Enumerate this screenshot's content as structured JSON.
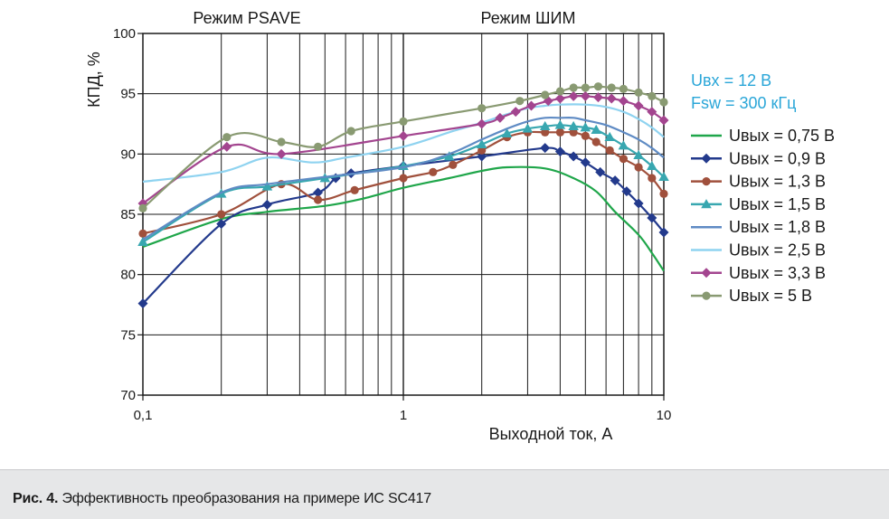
{
  "caption": {
    "label": "Рис. 4.",
    "text": " Эффективность преобразования на примере ИС SC417"
  },
  "chart_data": {
    "type": "line",
    "xscale": "log",
    "xlim": [
      0.1,
      10
    ],
    "ylim": [
      70,
      100
    ],
    "xlabel": "Выходной ток, А",
    "ylabel": "КПД, %",
    "xticks": [
      0.1,
      1,
      10
    ],
    "xtick_labels": [
      "0,1",
      "1",
      "10"
    ],
    "yticks": [
      70,
      75,
      80,
      85,
      90,
      95,
      100
    ],
    "grid": true,
    "legend_position": "right",
    "mode_labels": [
      "Режим PSAVE",
      "Режим ШИМ"
    ],
    "conditions": [
      "Uвх = 12 В",
      "Fsw = 300 кГц"
    ],
    "conditions_color": "#2aa6d8",
    "series": [
      {
        "name": "Uвых = 0,75 В",
        "color": "#1fa64a",
        "marker": "none",
        "points": [
          [
            0.1,
            82.3
          ],
          [
            0.2,
            84.6
          ],
          [
            0.3,
            85.2
          ],
          [
            0.5,
            85.7
          ],
          [
            0.7,
            86.3
          ],
          [
            1.0,
            87.2
          ],
          [
            1.5,
            88.0
          ],
          [
            2.0,
            88.6
          ],
          [
            2.5,
            88.9
          ],
          [
            3.5,
            88.8
          ],
          [
            4.5,
            88.0
          ],
          [
            5.5,
            86.9
          ],
          [
            6.5,
            85.2
          ],
          [
            8.0,
            83.3
          ],
          [
            9.0,
            81.8
          ],
          [
            10.0,
            80.3
          ]
        ]
      },
      {
        "name": "Uвых = 0,9 В",
        "color": "#233a8c",
        "marker": "diamond",
        "points": [
          [
            0.1,
            77.6
          ],
          [
            0.2,
            84.2
          ],
          [
            0.3,
            85.8
          ],
          [
            0.47,
            86.8
          ],
          [
            0.55,
            88.0
          ],
          [
            0.63,
            88.4
          ],
          [
            1.0,
            89.0
          ],
          [
            2.0,
            89.8
          ],
          [
            3.5,
            90.5
          ],
          [
            4.0,
            90.2
          ],
          [
            4.5,
            89.8
          ],
          [
            5.0,
            89.3
          ],
          [
            5.7,
            88.5
          ],
          [
            6.5,
            87.8
          ],
          [
            7.2,
            86.9
          ],
          [
            8.0,
            85.9
          ],
          [
            9.0,
            84.7
          ],
          [
            10.0,
            83.5
          ]
        ]
      },
      {
        "name": "Uвых = 1,3 В",
        "color": "#a0503c",
        "marker": "circle",
        "points": [
          [
            0.1,
            83.4
          ],
          [
            0.2,
            85.0
          ],
          [
            0.34,
            87.5
          ],
          [
            0.47,
            86.2
          ],
          [
            0.65,
            87.0
          ],
          [
            1.0,
            88.0
          ],
          [
            1.3,
            88.5
          ],
          [
            1.55,
            89.1
          ],
          [
            2.0,
            90.3
          ],
          [
            2.5,
            91.4
          ],
          [
            3.0,
            91.8
          ],
          [
            3.5,
            91.8
          ],
          [
            4.0,
            91.8
          ],
          [
            4.5,
            91.8
          ],
          [
            5.0,
            91.5
          ],
          [
            5.5,
            91.0
          ],
          [
            6.2,
            90.3
          ],
          [
            7.0,
            89.6
          ],
          [
            8.0,
            88.9
          ],
          [
            9.0,
            88.0
          ],
          [
            10.0,
            86.7
          ]
        ]
      },
      {
        "name": "Uвых = 1,5 В",
        "color": "#38a7b0",
        "marker": "triangle",
        "points": [
          [
            0.1,
            82.7
          ],
          [
            0.2,
            86.7
          ],
          [
            0.3,
            87.3
          ],
          [
            0.5,
            88.0
          ],
          [
            1.0,
            89.0
          ],
          [
            1.5,
            89.8
          ],
          [
            2.0,
            90.8
          ],
          [
            2.5,
            91.7
          ],
          [
            3.0,
            92.1
          ],
          [
            3.5,
            92.3
          ],
          [
            4.0,
            92.4
          ],
          [
            4.5,
            92.3
          ],
          [
            5.0,
            92.2
          ],
          [
            5.5,
            92.0
          ],
          [
            6.2,
            91.4
          ],
          [
            7.0,
            90.7
          ],
          [
            8.0,
            89.9
          ],
          [
            9.0,
            89.0
          ],
          [
            10.0,
            88.1
          ]
        ]
      },
      {
        "name": "Uвых = 1,8 В",
        "color": "#5f8bc4",
        "marker": "none",
        "points": [
          [
            0.1,
            82.9
          ],
          [
            0.2,
            86.8
          ],
          [
            0.3,
            87.5
          ],
          [
            0.5,
            88.1
          ],
          [
            1.0,
            88.9
          ],
          [
            1.5,
            90.0
          ],
          [
            2.0,
            91.2
          ],
          [
            2.5,
            92.1
          ],
          [
            3.0,
            92.7
          ],
          [
            3.5,
            93.0
          ],
          [
            4.0,
            93.0
          ],
          [
            4.5,
            93.0
          ],
          [
            5.0,
            92.8
          ],
          [
            6.0,
            92.4
          ],
          [
            7.0,
            91.8
          ],
          [
            8.0,
            91.2
          ],
          [
            9.0,
            90.5
          ],
          [
            10.0,
            89.7
          ]
        ]
      },
      {
        "name": "Uвых = 2,5 В",
        "color": "#8fd3f0",
        "marker": "none",
        "points": [
          [
            0.1,
            87.7
          ],
          [
            0.2,
            88.5
          ],
          [
            0.3,
            89.7
          ],
          [
            0.45,
            89.3
          ],
          [
            0.6,
            89.7
          ],
          [
            1.0,
            90.6
          ],
          [
            1.5,
            91.8
          ],
          [
            2.0,
            92.6
          ],
          [
            2.5,
            93.3
          ],
          [
            3.0,
            93.8
          ],
          [
            3.5,
            94.0
          ],
          [
            4.0,
            94.1
          ],
          [
            5.0,
            94.1
          ],
          [
            6.0,
            93.9
          ],
          [
            7.0,
            93.5
          ],
          [
            8.0,
            92.9
          ],
          [
            9.0,
            92.2
          ],
          [
            10.0,
            91.4
          ]
        ]
      },
      {
        "name": "Uвых = 3,3 В",
        "color": "#a3458f",
        "marker": "diamond",
        "points": [
          [
            0.1,
            85.9
          ],
          [
            0.21,
            90.6
          ],
          [
            0.34,
            90.0
          ],
          [
            1.0,
            91.5
          ],
          [
            2.0,
            92.5
          ],
          [
            2.35,
            93.0
          ],
          [
            2.7,
            93.5
          ],
          [
            3.1,
            94.0
          ],
          [
            3.6,
            94.4
          ],
          [
            4.0,
            94.6
          ],
          [
            4.5,
            94.8
          ],
          [
            5.0,
            94.8
          ],
          [
            5.6,
            94.7
          ],
          [
            6.3,
            94.6
          ],
          [
            7.0,
            94.4
          ],
          [
            8.0,
            94.0
          ],
          [
            9.0,
            93.5
          ],
          [
            10.0,
            92.8
          ]
        ]
      },
      {
        "name": "Uвых = 5 В",
        "color": "#899a72",
        "marker": "circle",
        "points": [
          [
            0.1,
            85.5
          ],
          [
            0.21,
            91.4
          ],
          [
            0.34,
            91.0
          ],
          [
            0.47,
            90.6
          ],
          [
            0.63,
            91.9
          ],
          [
            1.0,
            92.7
          ],
          [
            2.0,
            93.8
          ],
          [
            2.8,
            94.4
          ],
          [
            3.5,
            94.9
          ],
          [
            4.0,
            95.2
          ],
          [
            4.5,
            95.5
          ],
          [
            5.0,
            95.5
          ],
          [
            5.6,
            95.6
          ],
          [
            6.3,
            95.5
          ],
          [
            7.0,
            95.4
          ],
          [
            8.0,
            95.1
          ],
          [
            9.0,
            94.8
          ],
          [
            10.0,
            94.3
          ]
        ]
      }
    ]
  }
}
